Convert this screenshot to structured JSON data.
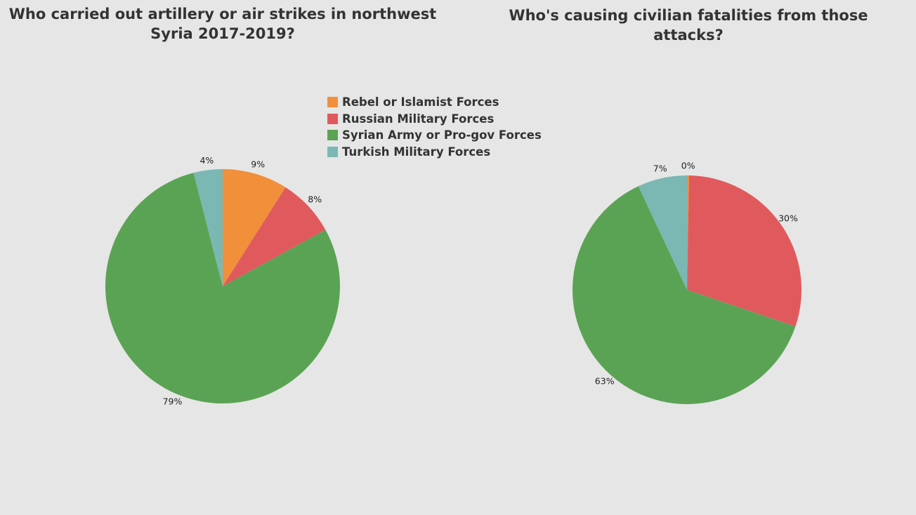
{
  "colors": {
    "background": "#e6e6e6",
    "rebel": "#f28f3b",
    "russian": "#e05a5d",
    "syrian": "#5ba354",
    "turkish": "#7bb8b3"
  },
  "legend": [
    {
      "label": "Rebel or Islamist Forces",
      "color": "#f28f3b"
    },
    {
      "label": "Russian Military Forces",
      "color": "#e05a5d"
    },
    {
      "label": "Syrian Army or Pro-gov Forces",
      "color": "#5ba354"
    },
    {
      "label": "Turkish Military Forces",
      "color": "#7bb8b3"
    }
  ],
  "chart_data": [
    {
      "type": "pie",
      "title": "Who carried out artillery or air strikes in northwest Syria 2017-2019?",
      "slices": [
        {
          "name": "Rebel or Islamist Forces",
          "value": 9,
          "label": "9%",
          "color": "#f28f3b"
        },
        {
          "name": "Russian Military Forces",
          "value": 8,
          "label": "8%",
          "color": "#e05a5d"
        },
        {
          "name": "Syrian Army or Pro-gov Forces",
          "value": 79,
          "label": "79%",
          "color": "#5ba354"
        },
        {
          "name": "Turkish Military Forces",
          "value": 4,
          "label": "4%",
          "color": "#7bb8b3"
        }
      ],
      "legend": "top-right"
    },
    {
      "type": "pie",
      "title": "Who's causing civilian fatalities from those attacks?",
      "slices": [
        {
          "name": "Rebel or Islamist Forces",
          "value": 0.3,
          "label": "0%",
          "color": "#f28f3b"
        },
        {
          "name": "Russian Military Forces",
          "value": 30,
          "label": "30%",
          "color": "#e05a5d"
        },
        {
          "name": "Syrian Army or Pro-gov Forces",
          "value": 63,
          "label": "63%",
          "color": "#5ba354"
        },
        {
          "name": "Turkish Military Forces",
          "value": 7,
          "label": "7%",
          "color": "#7bb8b3"
        }
      ]
    }
  ]
}
